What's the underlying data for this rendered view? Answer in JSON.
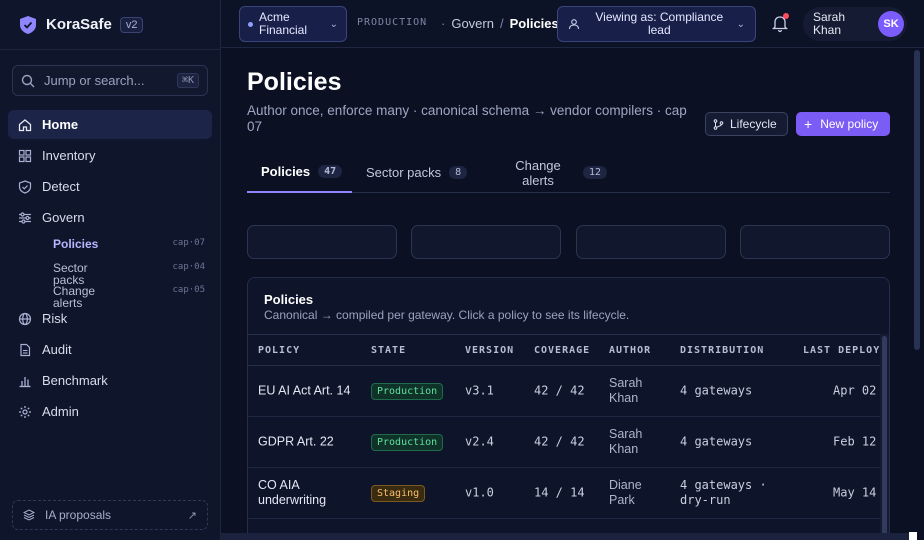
{
  "brand": {
    "name": "KoraSafe",
    "version": "v2"
  },
  "search": {
    "placeholder": "Jump or search...",
    "shortcut": "⌘K"
  },
  "nav": {
    "items": [
      {
        "label": "Home",
        "icon": "home-icon",
        "active": true
      },
      {
        "label": "Inventory",
        "icon": "grid-icon"
      },
      {
        "label": "Detect",
        "icon": "shield-check-icon"
      },
      {
        "label": "Govern",
        "icon": "sliders-icon"
      },
      {
        "label": "Risk",
        "icon": "globe-icon"
      },
      {
        "label": "Audit",
        "icon": "file-icon"
      },
      {
        "label": "Benchmark",
        "icon": "bar-chart-icon"
      },
      {
        "label": "Admin",
        "icon": "gear-icon"
      }
    ],
    "govern_sub": [
      {
        "label": "Policies",
        "cap": "cap·07",
        "active": true
      },
      {
        "label": "Sector packs",
        "cap": "cap·04"
      },
      {
        "label": "Change alerts",
        "cap": "cap·05"
      }
    ],
    "ia_proposals": "IA proposals"
  },
  "topbar": {
    "tenant": "Acme Financial",
    "environment": "PRODUCTION",
    "breadcrumb": {
      "parent": "Govern",
      "separator": "/",
      "current": "Policies",
      "prefix": "·"
    },
    "viewing_as": "Viewing as: Compliance lead",
    "user": {
      "name": "Sarah Khan",
      "initials": "SK"
    }
  },
  "page": {
    "title": "Policies",
    "subtitle": "Author once, enforce many · canonical schema → vendor compilers · cap 07",
    "lifecycle_button": "Lifecycle",
    "new_button": "New policy",
    "tabs": [
      {
        "label": "Policies",
        "count": "47",
        "active": true
      },
      {
        "label": "Sector packs",
        "count": "8"
      },
      {
        "label": "Change alerts",
        "count": "12"
      }
    ]
  },
  "table": {
    "title": "Policies",
    "subtitle": "Canonical → compiled per gateway. Click a policy to see its lifecycle.",
    "headers": [
      "POLICY",
      "STATE",
      "VERSION",
      "COVERAGE",
      "AUTHOR",
      "DISTRIBUTION",
      "LAST DEPLOY"
    ],
    "rows": [
      {
        "policy": "EU AI Act Art. 14",
        "state": "Production",
        "version": "v3.1",
        "coverage": "42 / 42",
        "author": "Sarah Khan",
        "distribution": "4 gateways",
        "last_deploy": "Apr 02"
      },
      {
        "policy": "GDPR Art. 22",
        "state": "Production",
        "version": "v2.4",
        "coverage": "42 / 42",
        "author": "Sarah Khan",
        "distribution": "4 gateways",
        "last_deploy": "Feb 12"
      },
      {
        "policy": "CO AIA underwriting",
        "state": "Staging",
        "version": "v1.0",
        "coverage": "14 / 14",
        "author": "Diane Park",
        "distribution": "4 gateways · dry-run",
        "last_deploy": "May 14"
      }
    ]
  },
  "colors": {
    "accent": "#7b5cf5",
    "background": "#0b1022",
    "production": "#5fe0a0",
    "staging": "#f4c06b"
  }
}
